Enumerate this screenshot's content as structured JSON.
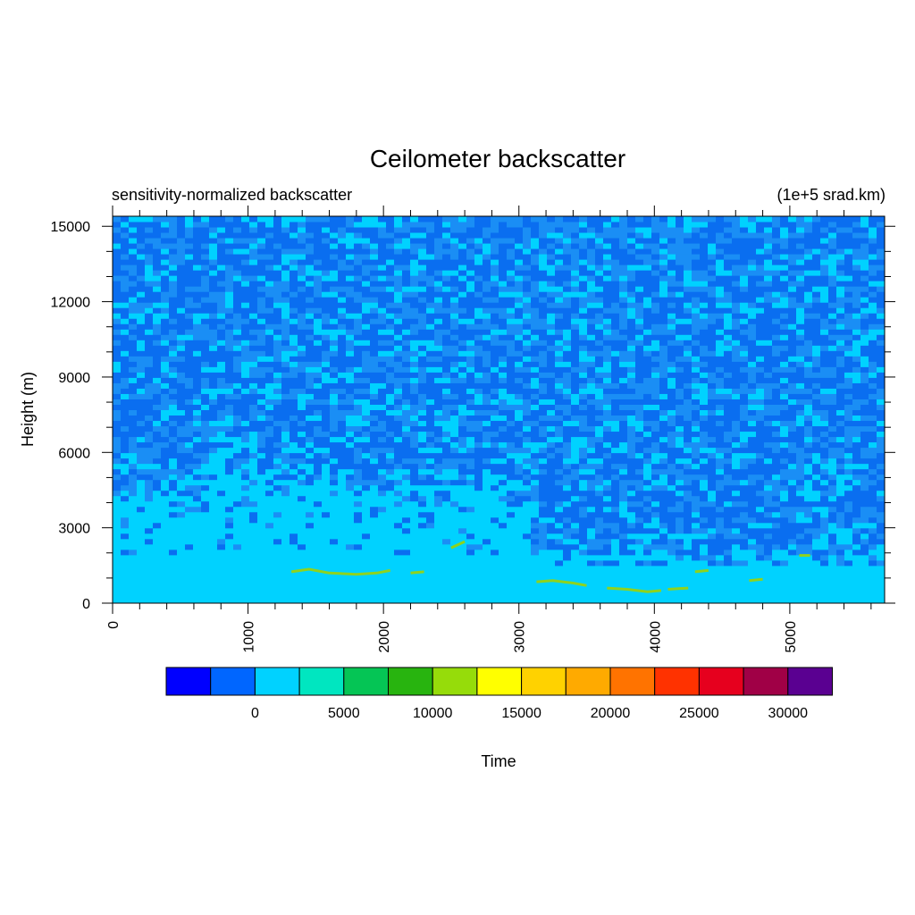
{
  "chart_data": {
    "type": "heatmap",
    "title": "Ceilometer backscatter",
    "left_subtitle": "sensitivity-normalized backscatter",
    "right_subtitle": "(1e+5 srad.km)",
    "ylabel": "Height (m)",
    "xlabel": "Time",
    "xlim": [
      0,
      5700
    ],
    "ylim": [
      0,
      15400
    ],
    "x_ticks": [
      "0",
      "1000",
      "2000",
      "3000",
      "4000",
      "5000"
    ],
    "y_ticks": [
      "0",
      "3000",
      "6000",
      "9000",
      "12000",
      "15000"
    ],
    "colorbar": {
      "colors": [
        "#0000ff",
        "#0066ff",
        "#00d2ff",
        "#00e6c0",
        "#05c555",
        "#28b40f",
        "#96dc0a",
        "#ffff00",
        "#ffd200",
        "#ffaa00",
        "#ff7300",
        "#ff3200",
        "#e6001e",
        "#a00046",
        "#5a0091"
      ],
      "labels": [
        "0",
        "5000",
        "10000",
        "15000",
        "20000",
        "25000",
        "30000"
      ]
    },
    "cloud_layers": [
      {
        "x": [
          1320,
          1450,
          1600,
          1800,
          1950,
          2050
        ],
        "y": [
          1250,
          1350,
          1200,
          1150,
          1200,
          1300
        ]
      },
      {
        "x": [
          2200,
          2300
        ],
        "y": [
          1200,
          1250
        ]
      },
      {
        "x": [
          2500,
          2600
        ],
        "y": [
          2200,
          2450
        ]
      },
      {
        "x": [
          3130,
          3250,
          3400,
          3500
        ],
        "y": [
          850,
          900,
          800,
          700
        ]
      },
      {
        "x": [
          3650,
          3800,
          3950,
          4050
        ],
        "y": [
          600,
          550,
          450,
          500
        ]
      },
      {
        "x": [
          4100,
          4250
        ],
        "y": [
          550,
          600
        ]
      },
      {
        "x": [
          4300,
          4400
        ],
        "y": [
          1250,
          1300
        ]
      },
      {
        "x": [
          4700,
          4800
        ],
        "y": [
          900,
          950
        ]
      },
      {
        "x": [
          5070,
          5150
        ],
        "y": [
          1900,
          1900
        ]
      }
    ]
  }
}
